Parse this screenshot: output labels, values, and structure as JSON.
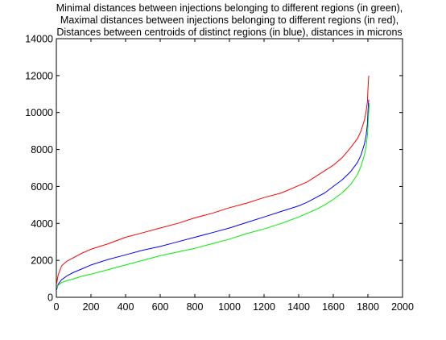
{
  "chart_data": {
    "type": "line",
    "title": [
      "Minimal distances between injections belonging to different regions (in green),",
      "Maximal distances between injections belonging to different regions (in red),",
      "Distances between centroids of distinct regions (in blue), distances in microns"
    ],
    "xlabel": "",
    "ylabel": "",
    "xlim": [
      0,
      2000
    ],
    "ylim": [
      0,
      14000
    ],
    "xticks": [
      0,
      200,
      400,
      600,
      800,
      1000,
      1200,
      1400,
      1600,
      1800,
      2000
    ],
    "yticks": [
      0,
      2000,
      4000,
      6000,
      8000,
      10000,
      12000,
      14000
    ],
    "grid": false,
    "legend": "none",
    "series": [
      {
        "color": "#ff0000",
        "x": [
          1,
          10,
          30,
          60,
          100,
          150,
          200,
          300,
          400,
          500,
          600,
          700,
          800,
          900,
          1000,
          1100,
          1200,
          1300,
          1400,
          1450,
          1500,
          1550,
          1600,
          1650,
          1700,
          1740,
          1760,
          1780,
          1790,
          1797,
          1800,
          1803,
          1805
        ],
        "y": [
          700,
          1200,
          1700,
          1950,
          2150,
          2400,
          2600,
          2900,
          3250,
          3500,
          3750,
          4000,
          4300,
          4550,
          4850,
          5100,
          5400,
          5650,
          6050,
          6250,
          6550,
          6850,
          7150,
          7550,
          8100,
          8600,
          9000,
          9600,
          10100,
          10600,
          11200,
          11700,
          12000
        ]
      },
      {
        "color": "#0000ff",
        "x": [
          1,
          10,
          30,
          60,
          100,
          150,
          200,
          300,
          400,
          500,
          600,
          700,
          800,
          900,
          1000,
          1100,
          1200,
          1300,
          1400,
          1450,
          1500,
          1550,
          1600,
          1650,
          1700,
          1740,
          1760,
          1780,
          1790,
          1797,
          1800,
          1803,
          1805
        ],
        "y": [
          400,
          700,
          950,
          1150,
          1350,
          1550,
          1750,
          2050,
          2300,
          2550,
          2750,
          3000,
          3250,
          3500,
          3750,
          4050,
          4350,
          4650,
          4950,
          5150,
          5400,
          5650,
          6000,
          6350,
          6800,
          7300,
          7700,
          8300,
          8800,
          9400,
          10000,
          10500,
          10700
        ]
      },
      {
        "color": "#00ee00",
        "x": [
          1,
          10,
          30,
          60,
          100,
          150,
          200,
          300,
          400,
          500,
          600,
          700,
          800,
          900,
          1000,
          1100,
          1200,
          1300,
          1400,
          1450,
          1500,
          1550,
          1600,
          1650,
          1700,
          1740,
          1760,
          1780,
          1790,
          1797,
          1800,
          1803,
          1808
        ],
        "y": [
          500,
          650,
          800,
          900,
          1000,
          1150,
          1250,
          1500,
          1750,
          2000,
          2250,
          2450,
          2650,
          2900,
          3150,
          3450,
          3700,
          4000,
          4350,
          4550,
          4750,
          5000,
          5300,
          5650,
          6100,
          6650,
          7100,
          7700,
          8200,
          8800,
          9300,
          9800,
          10500
        ]
      }
    ]
  }
}
